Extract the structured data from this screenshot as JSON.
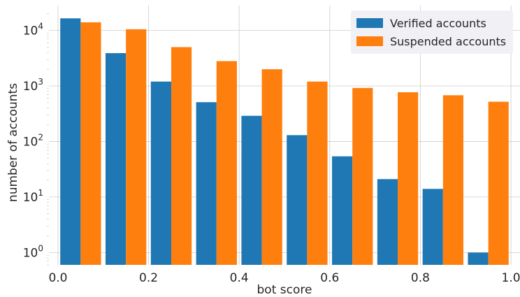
{
  "chart_data": {
    "type": "bar",
    "xlabel": "bot score",
    "ylabel": "number of accounts",
    "yscale": "log",
    "ylim": [
      0.6,
      28000
    ],
    "xlim": [
      -0.02,
      1.02
    ],
    "grid": true,
    "legend_position": "top-right",
    "categories": [
      "0.0-0.1",
      "0.1-0.2",
      "0.2-0.3",
      "0.3-0.4",
      "0.4-0.5",
      "0.5-0.6",
      "0.6-0.7",
      "0.7-0.8",
      "0.8-0.9",
      "0.9-1.0"
    ],
    "bin_edges": [
      0.0,
      0.1,
      0.2,
      0.3,
      0.4,
      0.5,
      0.6,
      0.7,
      0.8,
      0.9,
      1.0
    ],
    "x_ticks": [
      {
        "value": 0.0,
        "label": "0.0"
      },
      {
        "value": 0.2,
        "label": "0.2"
      },
      {
        "value": 0.4,
        "label": "0.4"
      },
      {
        "value": 0.6,
        "label": "0.6"
      },
      {
        "value": 0.8,
        "label": "0.8"
      },
      {
        "value": 1.0,
        "label": "1.0"
      }
    ],
    "y_ticks": [
      {
        "value": 1,
        "base": "10",
        "exp": "0"
      },
      {
        "value": 10,
        "base": "10",
        "exp": "1"
      },
      {
        "value": 100,
        "base": "10",
        "exp": "2"
      },
      {
        "value": 1000,
        "base": "10",
        "exp": "3"
      },
      {
        "value": 10000,
        "base": "10",
        "exp": "4"
      }
    ],
    "series": [
      {
        "name": "Verified accounts",
        "color": "#1f77b4",
        "values": [
          16500,
          3900,
          1200,
          510,
          290,
          130,
          54,
          21,
          14,
          1
        ]
      },
      {
        "name": "Suspended accounts",
        "color": "#ff7f0e",
        "values": [
          14000,
          10500,
          5000,
          2800,
          2000,
          1200,
          920,
          770,
          680,
          520
        ]
      }
    ]
  }
}
